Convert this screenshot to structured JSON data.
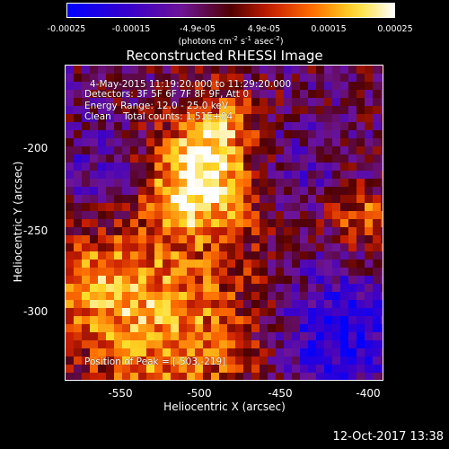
{
  "colorbar": {
    "ticks": [
      "-0.00025",
      "-0.00015",
      "-4.9e-05",
      "4.9e-05",
      "0.00015",
      "0.00025"
    ],
    "units_main": "(photons cm",
    "units_exp1": "-2",
    "units_mid": " s",
    "units_exp2": "-1",
    "units_mid2": " asec",
    "units_exp3": "-2",
    "units_end": ")"
  },
  "title": "Reconstructed RHESSI Image",
  "annotations": {
    "time": "4-May-2015 11:19:20.000 to 11:29:20.000",
    "detectors": "Detectors: 3F 5F 6F 7F 8F 9F, Att 0",
    "energy": "Energy Range: 12.0 - 25.0 keV",
    "clean": "Clean    Total counts: 1.51E+04",
    "peak": "Position of Peak = [-503,-219]"
  },
  "axes": {
    "xlabel": "Heliocentric X (arcsec)",
    "ylabel": "Heliocentric Y (arcsec)",
    "xticks": [
      "-550",
      "-500",
      "-450",
      "-400"
    ],
    "yticks": [
      "-200",
      "-250",
      "-300"
    ]
  },
  "timestamp": "12-Oct-2017 13:38"
}
